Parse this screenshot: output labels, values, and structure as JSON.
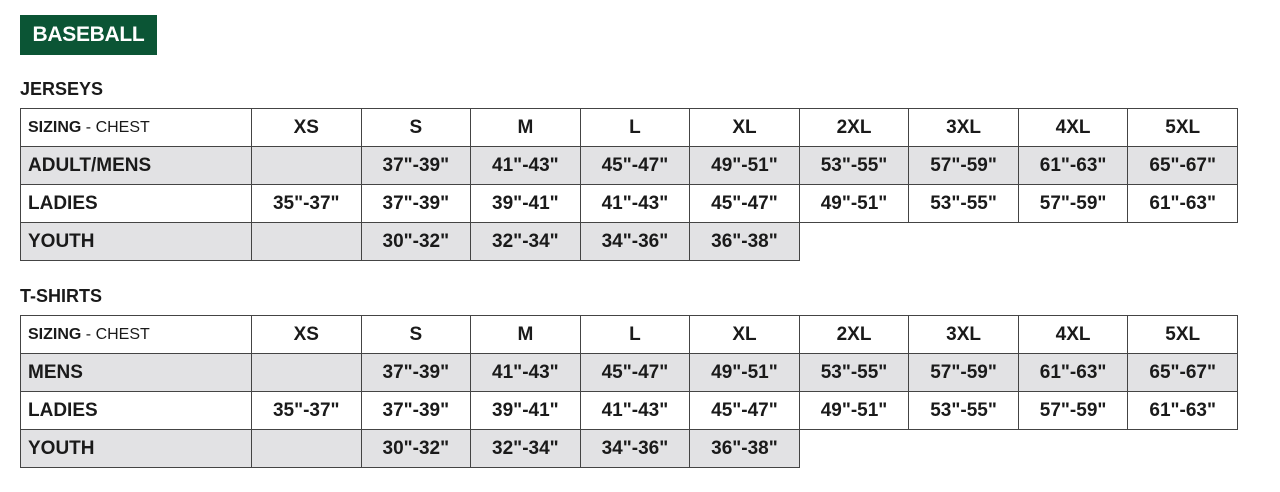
{
  "badge": "BASEBALL",
  "header": {
    "sizing": "SIZING",
    "sep": " - ",
    "measure": "CHEST",
    "sizes": [
      "XS",
      "S",
      "M",
      "L",
      "XL",
      "2XL",
      "3XL",
      "4XL",
      "5XL"
    ]
  },
  "accent_color": "#0b5535",
  "tables": [
    {
      "title": "JERSEYS",
      "rows": [
        {
          "label": "ADULT/MENS",
          "values": [
            "",
            "37\"-39\"",
            "41\"-43\"",
            "45\"-47\"",
            "49\"-51\"",
            "53\"-55\"",
            "57\"-59\"",
            "61\"-63\"",
            "65\"-67\""
          ]
        },
        {
          "label": "LADIES",
          "values": [
            "35\"-37\"",
            "37\"-39\"",
            "39\"-41\"",
            "41\"-43\"",
            "45\"-47\"",
            "49\"-51\"",
            "53\"-55\"",
            "57\"-59\"",
            "61\"-63\""
          ]
        },
        {
          "label": "YOUTH",
          "values": [
            "",
            "30\"-32\"",
            "32\"-34\"",
            "34\"-36\"",
            "36\"-38\""
          ]
        }
      ]
    },
    {
      "title": "T-SHIRTS",
      "rows": [
        {
          "label": "MENS",
          "values": [
            "",
            "37\"-39\"",
            "41\"-43\"",
            "45\"-47\"",
            "49\"-51\"",
            "53\"-55\"",
            "57\"-59\"",
            "61\"-63\"",
            "65\"-67\""
          ]
        },
        {
          "label": "LADIES",
          "values": [
            "35\"-37\"",
            "37\"-39\"",
            "39\"-41\"",
            "41\"-43\"",
            "45\"-47\"",
            "49\"-51\"",
            "53\"-55\"",
            "57\"-59\"",
            "61\"-63\""
          ]
        },
        {
          "label": "YOUTH",
          "values": [
            "",
            "30\"-32\"",
            "32\"-34\"",
            "34\"-36\"",
            "36\"-38\""
          ]
        }
      ]
    }
  ]
}
